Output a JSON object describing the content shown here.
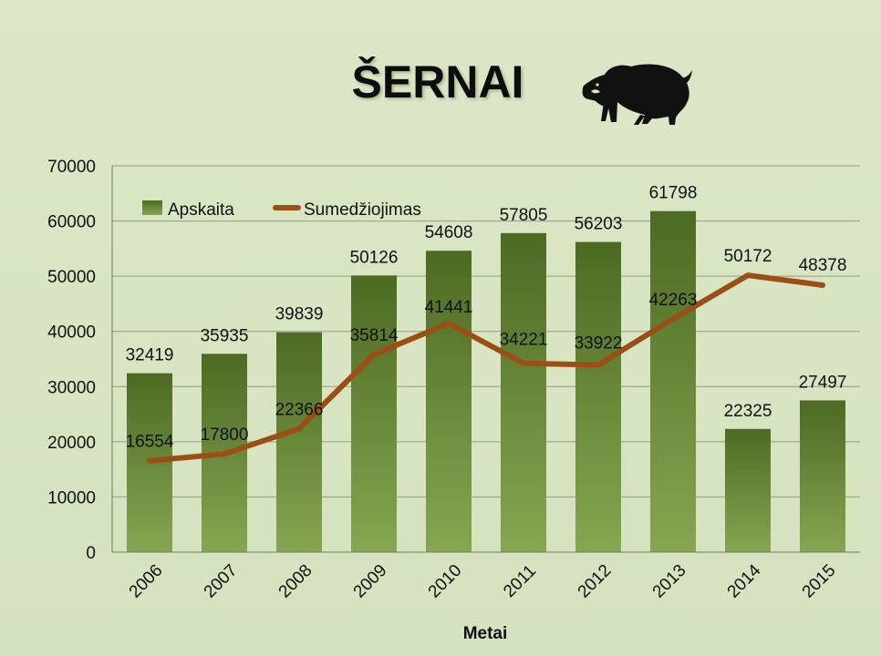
{
  "chart_data": {
    "type": "bar",
    "title": "ŠERNAI",
    "xlabel": "Metai",
    "ylabel": "",
    "categories": [
      "2006",
      "2007",
      "2008",
      "2009",
      "2010",
      "2011",
      "2012",
      "2013",
      "2014",
      "2015"
    ],
    "series": [
      {
        "name": "Apskaita",
        "type": "bar",
        "values": [
          32419,
          35935,
          39839,
          50126,
          54608,
          57805,
          56203,
          61798,
          22325,
          27497
        ]
      },
      {
        "name": "Sumedžiojimas",
        "type": "line",
        "values": [
          16554,
          17800,
          22366,
          35814,
          41441,
          34221,
          33922,
          42263,
          50172,
          48378
        ]
      }
    ],
    "ylim": [
      0,
      70000
    ],
    "yticks": [
      0,
      10000,
      20000,
      30000,
      40000,
      50000,
      60000,
      70000
    ],
    "grid": true,
    "legend_position": "top-left"
  },
  "colors": {
    "bar_top": "#4d6a23",
    "bar_bottom": "#86a651",
    "line": "#9c4f14",
    "grid": "#8f9f82"
  },
  "icons": {
    "title_icon": "wild-boar-icon"
  }
}
